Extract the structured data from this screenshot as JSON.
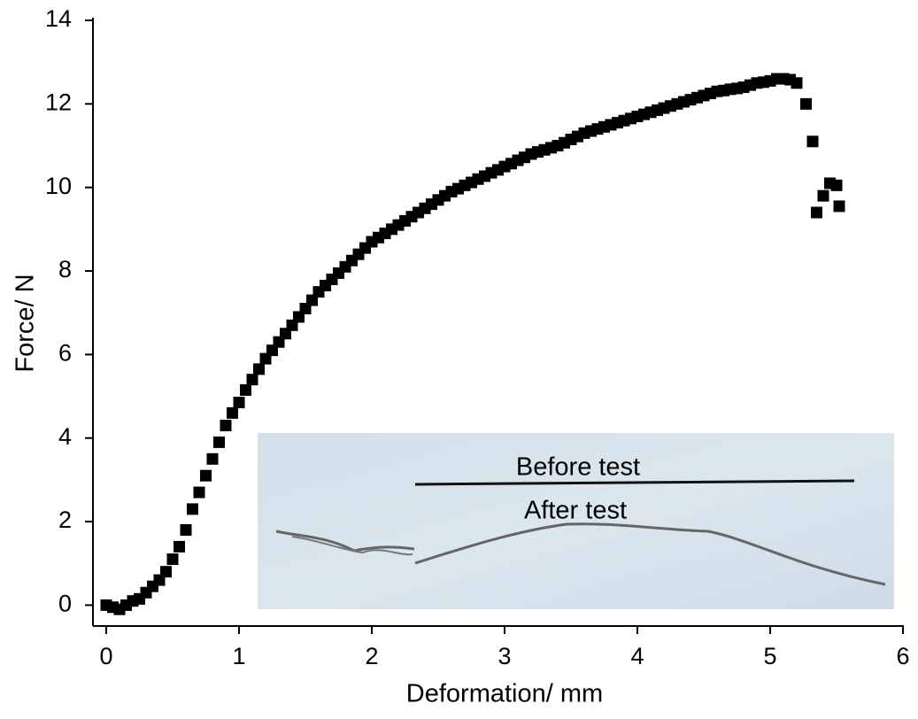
{
  "chart_data": {
    "type": "scatter",
    "x_label": "Deformation/ mm",
    "y_label": "Force/ N",
    "color": "#000000",
    "x": [
      0,
      0.05,
      0.1,
      0.15,
      0.2,
      0.25,
      0.3,
      0.35,
      0.4,
      0.45,
      0.5,
      0.55,
      0.6,
      0.65,
      0.7,
      0.75,
      0.8,
      0.85,
      0.9,
      0.95,
      1.0,
      1.05,
      1.1,
      1.15,
      1.2,
      1.25,
      1.3,
      1.35,
      1.4,
      1.45,
      1.5,
      1.55,
      1.6,
      1.65,
      1.7,
      1.75,
      1.8,
      1.85,
      1.9,
      1.95,
      2.0,
      2.05,
      2.1,
      2.15,
      2.2,
      2.25,
      2.3,
      2.35,
      2.4,
      2.45,
      2.5,
      2.55,
      2.6,
      2.65,
      2.7,
      2.75,
      2.8,
      2.85,
      2.9,
      2.95,
      3.0,
      3.05,
      3.1,
      3.15,
      3.2,
      3.25,
      3.3,
      3.35,
      3.4,
      3.45,
      3.5,
      3.55,
      3.6,
      3.65,
      3.7,
      3.75,
      3.8,
      3.85,
      3.9,
      3.95,
      4.0,
      4.05,
      4.1,
      4.15,
      4.2,
      4.25,
      4.3,
      4.35,
      4.4,
      4.45,
      4.5,
      4.55,
      4.6,
      4.65,
      4.7,
      4.75,
      4.8,
      4.85,
      4.9,
      4.95,
      5.0,
      5.05,
      5.1,
      5.15,
      5.2,
      5.27,
      5.32,
      5.35,
      5.4,
      5.45,
      5.5,
      5.52
    ],
    "y": [
      0.0,
      -0.05,
      -0.1,
      0.0,
      0.1,
      0.15,
      0.3,
      0.45,
      0.6,
      0.8,
      1.1,
      1.4,
      1.8,
      2.3,
      2.7,
      3.1,
      3.5,
      3.9,
      4.3,
      4.6,
      4.85,
      5.15,
      5.4,
      5.65,
      5.9,
      6.1,
      6.3,
      6.5,
      6.7,
      6.9,
      7.1,
      7.3,
      7.5,
      7.65,
      7.8,
      7.95,
      8.1,
      8.25,
      8.4,
      8.55,
      8.7,
      8.8,
      8.9,
      9.0,
      9.1,
      9.2,
      9.3,
      9.4,
      9.5,
      9.6,
      9.7,
      9.8,
      9.9,
      9.97,
      10.05,
      10.12,
      10.2,
      10.27,
      10.35,
      10.42,
      10.5,
      10.57,
      10.65,
      10.72,
      10.8,
      10.85,
      10.9,
      10.95,
      11.0,
      11.07,
      11.15,
      11.22,
      11.3,
      11.35,
      11.4,
      11.45,
      11.5,
      11.55,
      11.6,
      11.65,
      11.7,
      11.75,
      11.8,
      11.85,
      11.9,
      11.95,
      12.0,
      12.05,
      12.1,
      12.15,
      12.2,
      12.25,
      12.3,
      12.32,
      12.35,
      12.37,
      12.4,
      12.45,
      12.5,
      12.52,
      12.55,
      12.6,
      12.6,
      12.58,
      12.5,
      12.0,
      11.1,
      9.4,
      9.8,
      10.1,
      10.05,
      9.55
    ],
    "xlim": [
      -0.1,
      6
    ],
    "ylim": [
      -0.5,
      14
    ],
    "xticks": [
      0,
      1,
      2,
      3,
      4,
      5,
      6
    ],
    "yticks": [
      0,
      2,
      4,
      6,
      8,
      10,
      12,
      14
    ],
    "annotations": [
      "Before test",
      "After test"
    ]
  }
}
